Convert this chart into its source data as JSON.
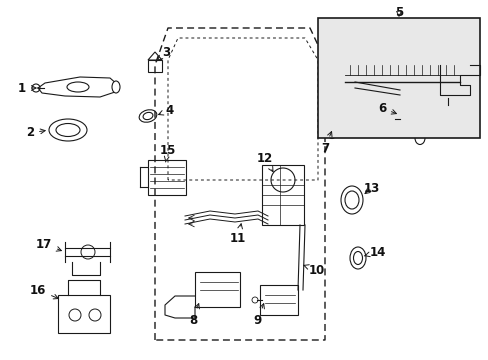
{
  "background_color": "#ffffff",
  "fig_width": 4.89,
  "fig_height": 3.6,
  "dpi": 100,
  "line_color": "#1a1a1a",
  "label_fontsize": 8.5,
  "part_color": "#111111"
}
